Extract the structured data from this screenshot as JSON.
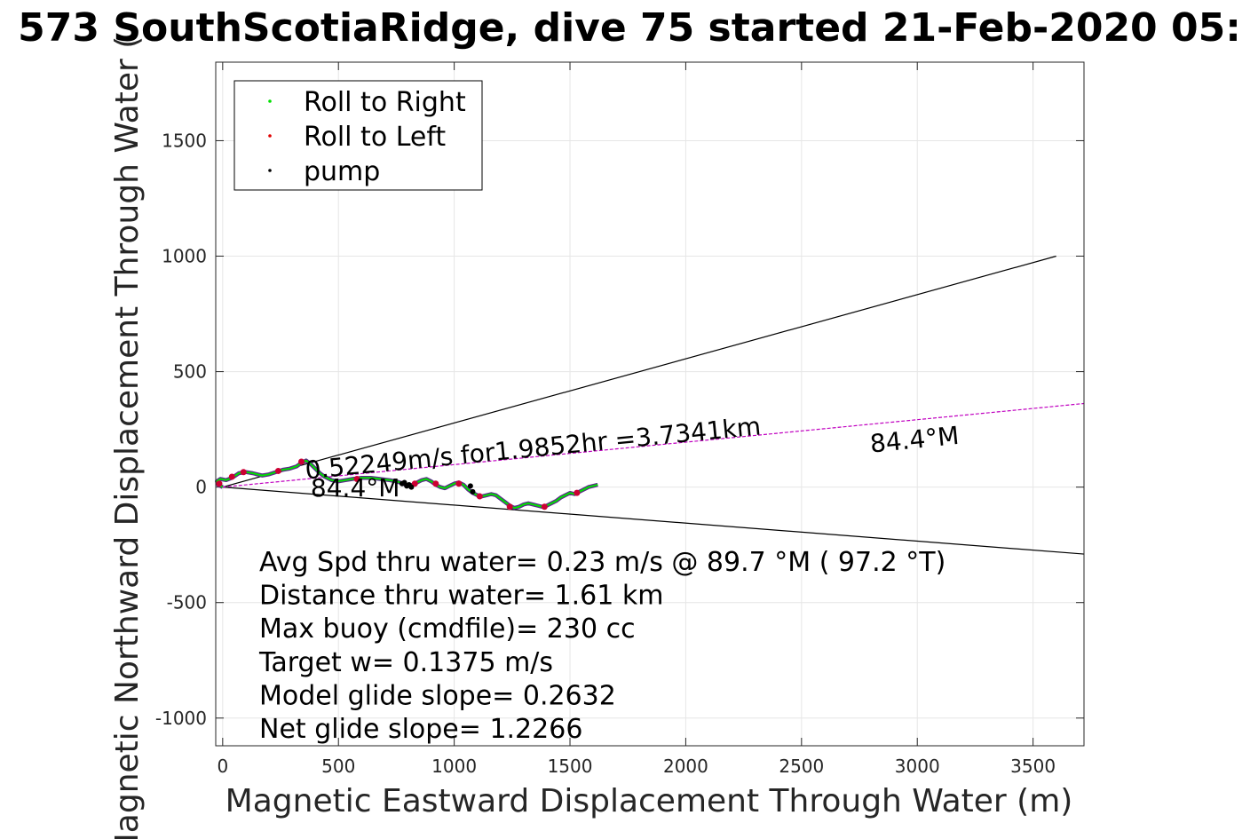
{
  "chart_data": {
    "type": "line",
    "title": "573 SouthScotiaRidge, dive 75 started 21-Feb-2020 05:",
    "xlabel": "Magnetic Eastward Displacement Through Water (m)",
    "ylabel": "Magnetic Northward Displacement Through Water (",
    "xlim": [
      -30,
      3720
    ],
    "ylim": [
      -1120,
      1840
    ],
    "xticks": [
      0,
      500,
      1000,
      1500,
      2000,
      2500,
      3000,
      3500
    ],
    "xtick_labels": [
      "0",
      "500",
      "1000",
      "1500",
      "2000",
      "2500",
      "3000",
      "3500"
    ],
    "yticks": [
      -1000,
      -500,
      0,
      500,
      1000,
      1500
    ],
    "ytick_labels": [
      "-1000",
      "-500",
      "0",
      "500",
      "1000",
      "1500"
    ],
    "grid": true,
    "legend_position": "top-left",
    "legend": [
      {
        "label": "Roll to Right",
        "color": "#00e000"
      },
      {
        "label": "Roll to Left",
        "color": "#e00000"
      },
      {
        "label": "pump",
        "color": "#000000"
      }
    ],
    "track": {
      "color": "#00e000",
      "points": [
        [
          0,
          0
        ],
        [
          -20,
          10
        ],
        [
          -25,
          25
        ],
        [
          -10,
          35
        ],
        [
          15,
          30
        ],
        [
          40,
          40
        ],
        [
          70,
          60
        ],
        [
          100,
          65
        ],
        [
          130,
          60
        ],
        [
          150,
          55
        ],
        [
          170,
          50
        ],
        [
          200,
          55
        ],
        [
          230,
          65
        ],
        [
          260,
          75
        ],
        [
          290,
          80
        ],
        [
          320,
          90
        ],
        [
          340,
          105
        ],
        [
          360,
          115
        ],
        [
          380,
          100
        ],
        [
          400,
          80
        ],
        [
          420,
          60
        ],
        [
          440,
          45
        ],
        [
          470,
          30
        ],
        [
          500,
          25
        ],
        [
          530,
          30
        ],
        [
          560,
          35
        ],
        [
          600,
          40
        ],
        [
          640,
          40
        ],
        [
          680,
          35
        ],
        [
          720,
          30
        ],
        [
          750,
          25
        ],
        [
          780,
          15
        ],
        [
          800,
          5
        ],
        [
          820,
          10
        ],
        [
          840,
          20
        ],
        [
          860,
          30
        ],
        [
          880,
          35
        ],
        [
          900,
          25
        ],
        [
          920,
          10
        ],
        [
          940,
          0
        ],
        [
          960,
          -5
        ],
        [
          980,
          5
        ],
        [
          1000,
          15
        ],
        [
          1020,
          20
        ],
        [
          1040,
          10
        ],
        [
          1060,
          -10
        ],
        [
          1080,
          -25
        ],
        [
          1100,
          -35
        ],
        [
          1120,
          -40
        ],
        [
          1140,
          -35
        ],
        [
          1160,
          -30
        ],
        [
          1180,
          -35
        ],
        [
          1200,
          -50
        ],
        [
          1220,
          -65
        ],
        [
          1240,
          -80
        ],
        [
          1260,
          -90
        ],
        [
          1280,
          -85
        ],
        [
          1300,
          -75
        ],
        [
          1320,
          -70
        ],
        [
          1340,
          -75
        ],
        [
          1360,
          -80
        ],
        [
          1380,
          -85
        ],
        [
          1400,
          -80
        ],
        [
          1420,
          -70
        ],
        [
          1440,
          -60
        ],
        [
          1460,
          -45
        ],
        [
          1480,
          -35
        ],
        [
          1500,
          -25
        ],
        [
          1520,
          -30
        ],
        [
          1540,
          -20
        ],
        [
          1560,
          -10
        ],
        [
          1580,
          0
        ],
        [
          1600,
          5
        ],
        [
          1620,
          10
        ]
      ]
    },
    "roll_left_points": [
      [
        -15,
        15
      ],
      [
        40,
        45
      ],
      [
        90,
        65
      ],
      [
        240,
        70
      ],
      [
        340,
        110
      ],
      [
        580,
        35
      ],
      [
        830,
        15
      ],
      [
        920,
        15
      ],
      [
        1020,
        15
      ],
      [
        1110,
        -40
      ],
      [
        1240,
        -85
      ],
      [
        1390,
        -85
      ],
      [
        1530,
        -25
      ]
    ],
    "pump_points": [
      [
        775,
        15
      ],
      [
        785,
        20
      ],
      [
        795,
        5
      ],
      [
        805,
        10
      ],
      [
        815,
        0
      ],
      [
        1070,
        5
      ],
      [
        1080,
        -20
      ]
    ],
    "reference_lines": [
      {
        "from": [
          0,
          0
        ],
        "to": [
          3600,
          1000
        ],
        "color": "#000000"
      },
      {
        "from": [
          0,
          0
        ],
        "to": [
          3720,
          -290
        ],
        "color": "#000000"
      },
      {
        "from": [
          0,
          0
        ],
        "to": [
          3720,
          362
        ],
        "color": "#c000c0",
        "dashed": true
      }
    ],
    "annotations": [
      {
        "text": "0.52249m/s for1.9852hr =3.7341km",
        "x": 360,
        "y": 35,
        "rotate": -5.6
      },
      {
        "text": "84.4°M",
        "x": 2800,
        "y": 150,
        "rotate": -5.6
      },
      {
        "text": "84.4°M",
        "x": 380,
        "y": -40,
        "rotate": 0
      }
    ],
    "stats": [
      "Avg Spd thru water=  0.23 m/s @  89.7 °M ( 97.2 °T)",
      "Distance thru water=  1.61 km",
      "Max buoy (cmdfile)= 230 cc",
      "Target w= 0.1375 m/s",
      "Model glide slope= 0.2632",
      "Net glide slope= 1.2266"
    ]
  }
}
